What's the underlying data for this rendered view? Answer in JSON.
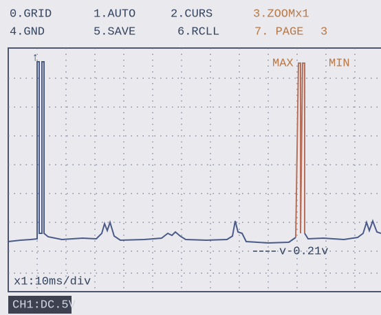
{
  "menu": {
    "row1": [
      "0.GRID",
      "1.AUTO",
      "2.CURS",
      "3.ZOOMx1"
    ],
    "row2": [
      "4.GND",
      "5.SAVE",
      "6.RCLL",
      "7. PAGE"
    ],
    "page": "3"
  },
  "screen": {
    "trigger": "↑",
    "max": "MAX",
    "min": "MIN",
    "cursor": "v-0.21v",
    "timebase": "x1:10ms/div"
  },
  "status": "CH1:DC.5V"
}
